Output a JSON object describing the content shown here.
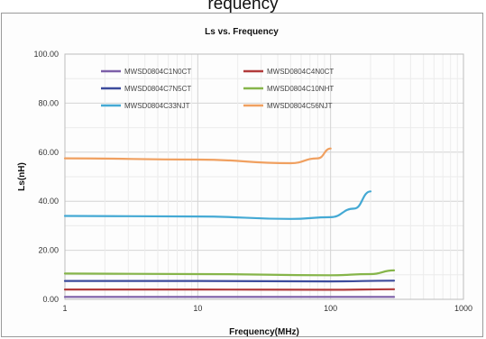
{
  "page_heading": "requency",
  "chart_data": {
    "type": "line",
    "title": "Ls vs. Frequency",
    "xlabel": "Frequency(MHz)",
    "ylabel": "Ls(nH)",
    "x_scale": "log",
    "xlim": [
      1,
      1000
    ],
    "ylim": [
      0,
      100
    ],
    "x_ticks": [
      "1",
      "10",
      "100",
      "1000"
    ],
    "y_ticks": [
      "0.00",
      "20.00",
      "40.00",
      "60.00",
      "80.00",
      "100.00"
    ],
    "grid": true,
    "legend_position": "top-left, inside plot",
    "series": [
      {
        "name": "MWSD0804C1N0CT",
        "color": "#7d5fa8",
        "x": [
          1,
          10,
          100,
          300
        ],
        "values": [
          1.0,
          1.0,
          1.0,
          1.0
        ]
      },
      {
        "name": "MWSD0804C4N0CT",
        "color": "#b23b3b",
        "x": [
          1,
          10,
          100,
          300
        ],
        "values": [
          4.0,
          4.0,
          3.9,
          4.1
        ]
      },
      {
        "name": "MWSD0804C7N5CT",
        "color": "#3c4b9c",
        "x": [
          1,
          10,
          100,
          300
        ],
        "values": [
          7.5,
          7.5,
          7.3,
          7.6
        ]
      },
      {
        "name": "MWSD0804C10NHT",
        "color": "#86b54a",
        "x": [
          1,
          10,
          100,
          200,
          300
        ],
        "values": [
          10.5,
          10.3,
          9.8,
          10.3,
          11.8
        ]
      },
      {
        "name": "MWSD0804C33NJT",
        "color": "#44a9d4",
        "x": [
          1,
          10,
          50,
          100,
          150,
          200
        ],
        "values": [
          34.0,
          33.8,
          32.8,
          33.5,
          37.0,
          44.0
        ]
      },
      {
        "name": "MWSD0804C56NJT",
        "color": "#f0a060",
        "x": [
          1,
          10,
          50,
          80,
          100
        ],
        "values": [
          57.5,
          57.0,
          55.5,
          57.5,
          61.5
        ]
      }
    ]
  }
}
